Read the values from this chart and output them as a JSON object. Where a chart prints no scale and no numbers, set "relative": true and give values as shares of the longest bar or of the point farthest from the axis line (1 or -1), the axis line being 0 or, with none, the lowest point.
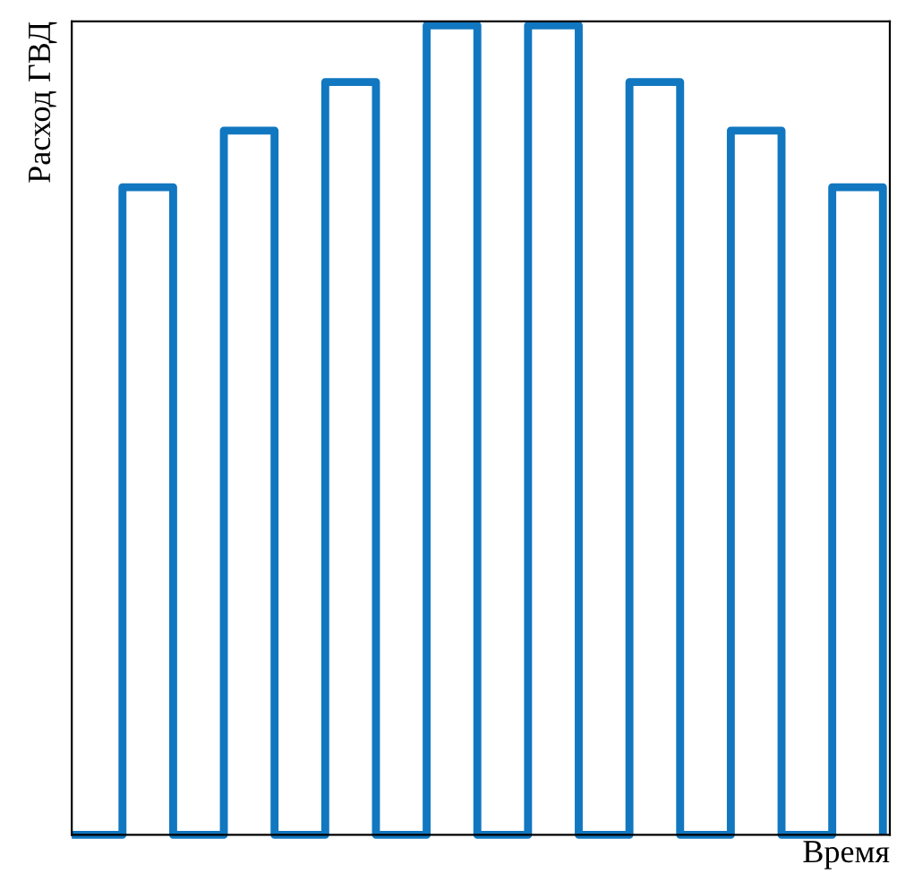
{
  "chart_data": {
    "type": "step",
    "relative": true,
    "xlabel": "Время",
    "ylabel": "Расход ГВД",
    "categories": [
      null,
      null,
      null,
      null,
      null,
      null,
      null,
      null,
      null,
      null,
      null,
      null,
      null,
      null,
      null,
      null,
      null
    ],
    "series": [
      {
        "color": "#1177c0",
        "values": [
          0,
          0.8,
          0,
          0.87,
          0,
          0.93,
          0,
          1,
          0,
          1,
          0,
          0.93,
          0,
          0.87,
          0,
          0.8,
          0
        ]
      }
    ]
  }
}
